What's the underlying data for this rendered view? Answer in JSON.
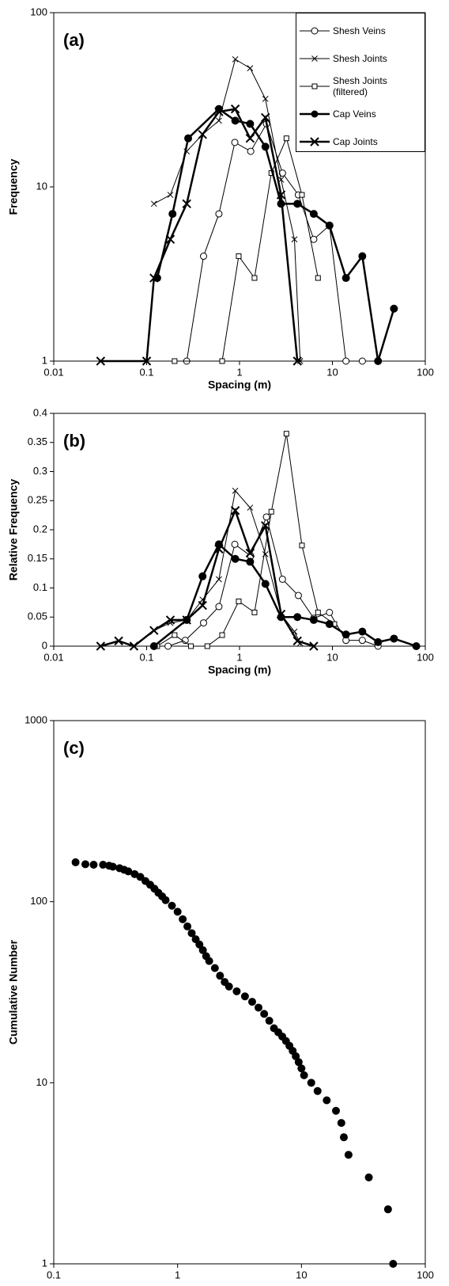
{
  "chart_data": [
    {
      "type": "line",
      "annotation": "(a)",
      "xlabel": "Spacing (m)",
      "ylabel": "Frequency",
      "xlog": true,
      "ylog": true,
      "xlim": [
        0.01,
        100
      ],
      "ylim": [
        1,
        100
      ],
      "xticks": [
        0.01,
        0.1,
        1,
        10,
        100
      ],
      "yticks": [
        1,
        10,
        100
      ],
      "legend": "upper right",
      "series": [
        {
          "name": "Shesh Veins",
          "color": "#000000",
          "marker": "circle-open",
          "line_width": 1,
          "x": [
            0.27,
            0.41,
            0.6,
            0.89,
            1.32,
            1.95,
            2.9,
            4.3,
            6.3,
            9.3,
            14,
            21
          ],
          "values": [
            1,
            4,
            7,
            18,
            16,
            23,
            12,
            9,
            5,
            6,
            1,
            1
          ]
        },
        {
          "name": "Shesh Joints",
          "color": "#000000",
          "marker": "x",
          "line_width": 1,
          "x": [
            0.12,
            0.18,
            0.27,
            0.4,
            0.6,
            0.9,
            1.3,
            1.9,
            2.8,
            3.9,
            4.5
          ],
          "values": [
            8,
            9,
            16,
            20,
            24,
            54,
            48,
            32,
            11,
            5,
            1
          ]
        },
        {
          "name": "Shesh Joints (filtered)",
          "color": "#000000",
          "marker": "square-open",
          "line_width": 1,
          "x": [
            0.2,
            0.65,
            0.98,
            1.45,
            2.2,
            3.2,
            4.7,
            7
          ],
          "values": [
            1,
            1,
            4,
            3,
            12,
            19,
            9,
            3
          ]
        },
        {
          "name": "Cap Veins",
          "color": "#000000",
          "marker": "circle-filled",
          "line_width": 2.5,
          "x": [
            0.13,
            0.19,
            0.28,
            0.6,
            0.9,
            1.3,
            1.9,
            2.8,
            4.2,
            6.3,
            9.3,
            14,
            21,
            31,
            46
          ],
          "values": [
            3,
            7,
            19,
            28,
            24,
            23,
            17,
            8,
            8,
            7,
            6,
            3,
            4,
            1,
            2
          ]
        },
        {
          "name": "Cap Joints",
          "color": "#000000",
          "marker": "x-large",
          "line_width": 2.5,
          "x": [
            0.032,
            0.1,
            0.12,
            0.18,
            0.27,
            0.4,
            0.6,
            0.9,
            1.3,
            1.9,
            2.8,
            4.2
          ],
          "values": [
            1,
            1,
            3,
            5,
            8,
            20,
            27,
            28,
            19,
            25,
            9,
            1
          ]
        }
      ]
    },
    {
      "type": "line",
      "annotation": "(b)",
      "xlabel": "Spacing (m)",
      "ylabel": "Relative Frequency",
      "xlog": true,
      "ylog": false,
      "xlim": [
        0.01,
        100
      ],
      "ylim": [
        0,
        0.4
      ],
      "xticks": [
        0.01,
        0.1,
        1,
        10,
        100
      ],
      "yticks": [
        0,
        0.05,
        0.1,
        0.15,
        0.2,
        0.25,
        0.3,
        0.35,
        0.4
      ],
      "series": [
        {
          "name": "Shesh Veins",
          "color": "#000000",
          "marker": "circle-open",
          "line_width": 1,
          "x": [
            0.17,
            0.26,
            0.41,
            0.6,
            0.89,
            1.32,
            1.95,
            2.9,
            4.3,
            6.3,
            9.3,
            14,
            21,
            31
          ],
          "values": [
            0,
            0.01,
            0.04,
            0.068,
            0.175,
            0.155,
            0.222,
            0.115,
            0.087,
            0.048,
            0.058,
            0.01,
            0.01,
            0
          ]
        },
        {
          "name": "Shesh Joints",
          "color": "#000000",
          "marker": "x",
          "line_width": 1,
          "x": [
            0.12,
            0.18,
            0.27,
            0.4,
            0.6,
            0.9,
            1.3,
            1.9,
            2.8,
            3.9,
            4.5
          ],
          "values": [
            0.027,
            0.04,
            0.045,
            0.08,
            0.115,
            0.267,
            0.238,
            0.158,
            0.055,
            0.025,
            0.005
          ]
        },
        {
          "name": "Shesh Joints (filtered)",
          "color": "#000000",
          "marker": "square-open",
          "line_width": 1,
          "x": [
            0.13,
            0.2,
            0.3,
            0.45,
            0.65,
            0.98,
            1.45,
            2.2,
            3.2,
            4.7,
            7,
            10.5
          ],
          "values": [
            0,
            0.019,
            0,
            0,
            0.019,
            0.077,
            0.058,
            0.231,
            0.365,
            0.173,
            0.058,
            0.038
          ]
        },
        {
          "name": "Cap Veins",
          "color": "#000000",
          "marker": "circle-filled",
          "line_width": 2.5,
          "x": [
            0.12,
            0.27,
            0.4,
            0.6,
            0.9,
            1.3,
            1.9,
            2.8,
            4.2,
            6.3,
            9.3,
            14,
            21,
            31,
            46,
            80
          ],
          "values": [
            0,
            0.045,
            0.12,
            0.175,
            0.15,
            0.145,
            0.107,
            0.05,
            0.05,
            0.045,
            0.038,
            0.02,
            0.025,
            0.007,
            0.013,
            0
          ]
        },
        {
          "name": "Cap Joints",
          "color": "#000000",
          "marker": "x-large",
          "line_width": 2.5,
          "x": [
            0.032,
            0.05,
            0.073,
            0.12,
            0.18,
            0.27,
            0.4,
            0.6,
            0.9,
            1.3,
            1.9,
            2.8,
            4.2,
            6.3
          ],
          "values": [
            0,
            0.009,
            0,
            0.027,
            0.045,
            0.045,
            0.07,
            0.167,
            0.233,
            0.16,
            0.207,
            0.055,
            0.009,
            0
          ]
        }
      ]
    },
    {
      "type": "scatter",
      "annotation": "(c)",
      "xlabel": "Spacing (m)",
      "ylabel": "Cumulative Number",
      "xlog": true,
      "ylog": true,
      "xlim": [
        0.1,
        100
      ],
      "ylim": [
        1,
        1000
      ],
      "xticks": [
        0.1,
        1,
        10,
        100
      ],
      "yticks": [
        1,
        10,
        100,
        1000
      ],
      "series": [
        {
          "name": "Cumulative Number",
          "color": "#000000",
          "marker": "circle-filled",
          "x": [
            0.15,
            0.18,
            0.21,
            0.25,
            0.28,
            0.3,
            0.34,
            0.37,
            0.4,
            0.45,
            0.5,
            0.55,
            0.6,
            0.65,
            0.7,
            0.75,
            0.8,
            0.9,
            1.0,
            1.1,
            1.2,
            1.3,
            1.4,
            1.5,
            1.6,
            1.7,
            1.8,
            2.0,
            2.2,
            2.4,
            2.6,
            3.0,
            3.5,
            4.0,
            4.5,
            5.0,
            5.5,
            6.0,
            6.5,
            7.0,
            7.5,
            8.0,
            8.5,
            9.0,
            9.5,
            10,
            10.5,
            12,
            13.5,
            16,
            19,
            21,
            22,
            24,
            35,
            50,
            55
          ],
          "values": [
            165,
            161,
            160,
            160,
            158,
            156,
            153,
            150,
            147,
            142,
            137,
            130,
            124,
            118,
            112,
            107,
            102,
            95,
            88,
            80,
            73,
            67,
            62,
            58,
            54,
            50,
            47,
            43,
            39,
            36,
            34,
            32,
            30,
            28,
            26,
            24,
            22,
            20,
            19,
            18,
            17,
            16,
            15,
            14,
            13,
            12,
            11,
            10,
            9,
            8,
            7,
            6,
            5,
            4,
            3,
            2,
            1
          ]
        }
      ]
    }
  ]
}
